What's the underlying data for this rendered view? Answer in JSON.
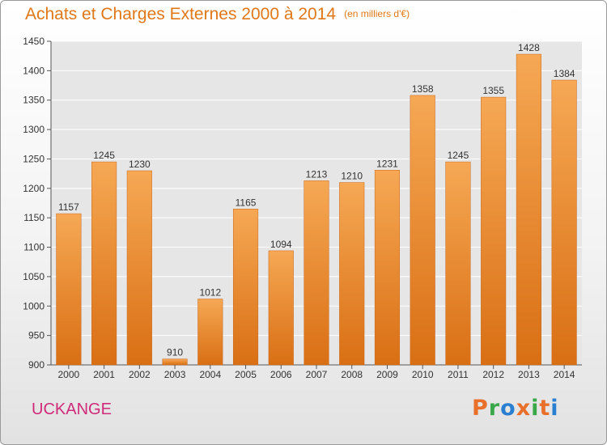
{
  "chart_data": {
    "type": "bar",
    "title": "Achats et Charges Externes 2000 à 2014",
    "subtitle": "(en milliers d'€)",
    "categories": [
      "2000",
      "2001",
      "2002",
      "2003",
      "2004",
      "2005",
      "2006",
      "2007",
      "2008",
      "2009",
      "2010",
      "2011",
      "2012",
      "2013",
      "2014"
    ],
    "values": [
      1157,
      1245,
      1230,
      910,
      1012,
      1165,
      1094,
      1213,
      1210,
      1231,
      1358,
      1245,
      1355,
      1428,
      1384
    ],
    "ylim": [
      900,
      1450
    ],
    "yticks": [
      900,
      950,
      1000,
      1050,
      1100,
      1150,
      1200,
      1250,
      1300,
      1350,
      1400,
      1450
    ],
    "grid": true,
    "bar_color": "#f08a2c",
    "bar_color_light": "#f6a854",
    "bar_color_dark": "#d96f14"
  },
  "footer": {
    "city": "UCKANGE",
    "city_color": "#d02a7a",
    "logo": "Proxiti",
    "logo_colors": [
      "#e8702a",
      "#3aa84a",
      "#2a7fd0",
      "#e8702a",
      "#3aa84a",
      "#e8702a",
      "#2a7fd0"
    ]
  }
}
